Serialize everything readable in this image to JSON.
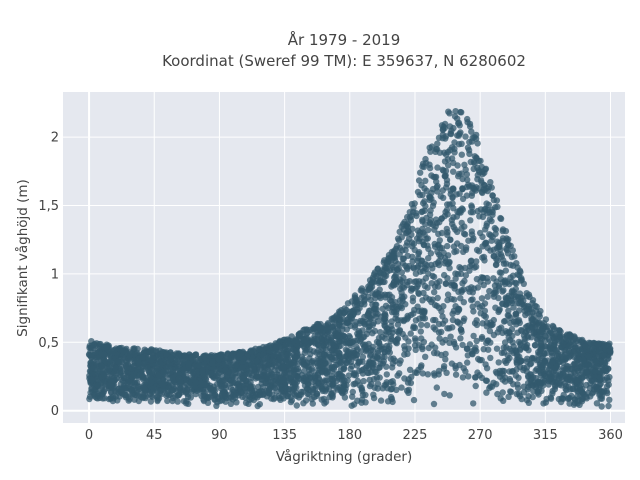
{
  "chart_data": {
    "type": "scatter",
    "title": "År 1979 - 2019",
    "subtitle": "Koordinat (Sweref 99 TM): E 359637, N 6280602",
    "xlabel": "Vågriktning (grader)",
    "ylabel": "Signifikant våghöjd (m)",
    "xlim": [
      -18,
      370
    ],
    "ylim": [
      -0.09,
      2.33
    ],
    "x_ticks": [
      0,
      45,
      90,
      135,
      180,
      225,
      270,
      315,
      360
    ],
    "x_tick_labels": [
      "0",
      "45",
      "90",
      "135",
      "180",
      "225",
      "270",
      "315",
      "360"
    ],
    "y_ticks": [
      0,
      0.5,
      1,
      1.5,
      2
    ],
    "y_tick_labels": [
      "0",
      "0,5",
      "1",
      "1,5",
      "2"
    ],
    "grid": true,
    "legend": "none",
    "marker_color": "#335a6e",
    "plot_background": "#e5e8ef",
    "envelope_description_upper": {
      "direction": [
        0,
        20,
        45,
        60,
        90,
        110,
        135,
        150,
        170,
        180,
        195,
        210,
        220,
        230,
        240,
        248,
        255,
        262,
        270,
        280,
        290,
        300,
        310,
        320,
        330,
        340,
        350,
        360
      ],
      "max_height": [
        0.52,
        0.46,
        0.45,
        0.42,
        0.41,
        0.44,
        0.52,
        0.6,
        0.7,
        0.8,
        0.98,
        1.2,
        1.45,
        1.8,
        2.05,
        2.2,
        2.2,
        2.15,
        1.95,
        1.6,
        1.25,
        0.95,
        0.75,
        0.62,
        0.57,
        0.52,
        0.5,
        0.49
      ]
    },
    "height_range_lower": [
      0.02,
      0.1
    ]
  }
}
